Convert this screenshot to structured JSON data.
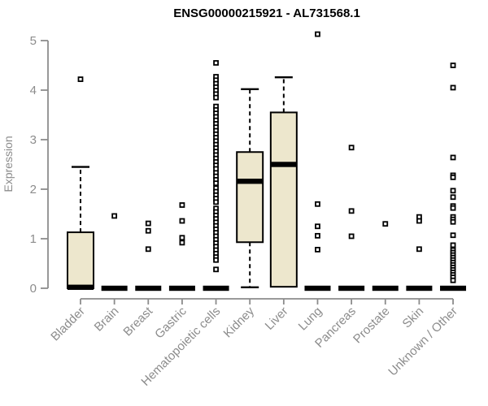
{
  "chart_data": {
    "type": "boxplot",
    "title": "ENSG00000215921 - AL731568.1",
    "xlabel": "",
    "ylabel": "Expression",
    "ylim": [
      0,
      5
    ],
    "yticks": [
      0,
      1,
      2,
      3,
      4,
      5
    ],
    "grid": false,
    "legend": null,
    "outlier_marker": "open-square",
    "colors": {
      "box_fill": "#EDE7CD",
      "box_stroke": "#000000",
      "median": "#000000",
      "whisker": "#000000",
      "axis": "#8C8C8C",
      "tick_label": "#8C8C8C",
      "title": "#000000",
      "background": "#FFFFFF"
    },
    "categories": [
      "Bladder",
      "Brain",
      "Breast",
      "Gastric",
      "Hematopoietic cells",
      "Kidney",
      "Liver",
      "Lung",
      "Pancreas",
      "Prostate",
      "Skin",
      "Unknown / Other"
    ],
    "boxes": [
      {
        "category": "Bladder",
        "q1": 0,
        "median": 0.02,
        "q3": 1.13,
        "whisker_low": 0,
        "whisker_high": 2.45,
        "outliers": [
          4.22
        ]
      },
      {
        "category": "Brain",
        "q1": 0,
        "median": 0,
        "q3": 0,
        "whisker_low": 0,
        "whisker_high": 0,
        "outliers": [
          1.46
        ]
      },
      {
        "category": "Breast",
        "q1": 0,
        "median": 0,
        "q3": 0,
        "whisker_low": 0,
        "whisker_high": 0,
        "outliers": [
          1.31,
          1.16,
          0.79
        ]
      },
      {
        "category": "Gastric",
        "q1": 0,
        "median": 0,
        "q3": 0,
        "whisker_low": 0,
        "whisker_high": 0,
        "outliers": [
          1.68,
          1.36,
          1.02,
          0.92
        ]
      },
      {
        "category": "Hematopoietic cells",
        "q1": 0,
        "median": 0,
        "q3": 0,
        "whisker_low": 0,
        "whisker_high": 0,
        "outliers": [
          4.55,
          4.27,
          4.2,
          4.13,
          4.06,
          3.99,
          3.92,
          3.85,
          3.67,
          3.6,
          3.53,
          3.46,
          3.39,
          3.32,
          3.25,
          3.18,
          3.11,
          3.04,
          2.97,
          2.9,
          2.83,
          2.76,
          2.69,
          2.62,
          2.55,
          2.48,
          2.41,
          2.33,
          2.26,
          2.19,
          2.12,
          2.02,
          1.95,
          1.88,
          1.81,
          1.74,
          1.61,
          1.54,
          1.47,
          1.4,
          1.33,
          1.26,
          1.19,
          1.12,
          1.05,
          0.98,
          0.91,
          0.84,
          0.77,
          0.7,
          0.63,
          0.57,
          0.38
        ]
      },
      {
        "category": "Kidney",
        "q1": 0.93,
        "median": 2.16,
        "q3": 2.75,
        "whisker_low": 0.02,
        "whisker_high": 4.02,
        "outliers": []
      },
      {
        "category": "Liver",
        "q1": 0.03,
        "median": 2.5,
        "q3": 3.55,
        "whisker_low": 0.03,
        "whisker_high": 4.26,
        "outliers": []
      },
      {
        "category": "Lung",
        "q1": 0,
        "median": 0,
        "q3": 0,
        "whisker_low": 0,
        "whisker_high": 0,
        "outliers": [
          5.13,
          1.7,
          1.25,
          1.06,
          0.78
        ]
      },
      {
        "category": "Pancreas",
        "q1": 0,
        "median": 0,
        "q3": 0,
        "whisker_low": 0,
        "whisker_high": 0,
        "outliers": [
          2.84,
          1.56,
          1.05
        ]
      },
      {
        "category": "Prostate",
        "q1": 0,
        "median": 0,
        "q3": 0,
        "whisker_low": 0,
        "whisker_high": 0,
        "outliers": [
          1.3
        ]
      },
      {
        "category": "Skin",
        "q1": 0,
        "median": 0,
        "q3": 0,
        "whisker_low": 0,
        "whisker_high": 0,
        "outliers": [
          1.44,
          1.36,
          0.79
        ]
      },
      {
        "category": "Unknown / Other",
        "q1": 0,
        "median": 0,
        "q3": 0,
        "whisker_low": 0,
        "whisker_high": 0,
        "outliers": [
          4.5,
          4.05,
          2.64,
          2.28,
          2.24,
          1.97,
          1.84,
          1.66,
          1.62,
          1.44,
          1.39,
          1.34,
          1.07,
          0.87,
          0.77,
          0.72,
          0.67,
          0.62,
          0.57,
          0.52,
          0.47,
          0.42,
          0.37,
          0.32,
          0.27,
          0.22,
          0.16
        ]
      }
    ]
  }
}
